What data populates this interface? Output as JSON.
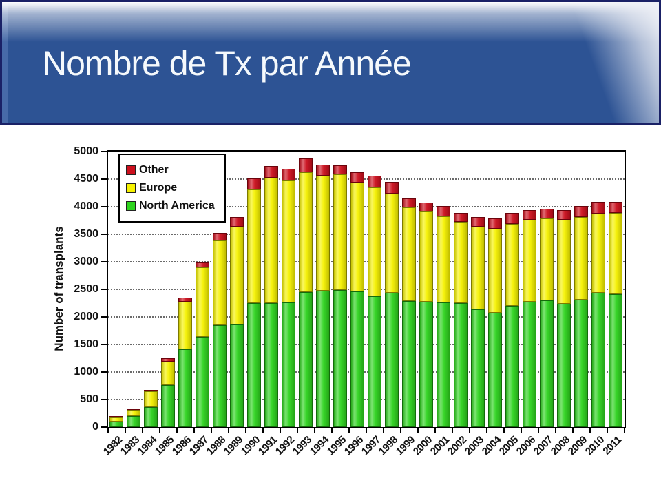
{
  "slide": {
    "title": "Nombre de Tx par Année",
    "banner_color": "#2d5394",
    "banner_border_color": "#1a2166"
  },
  "chart_data": {
    "type": "bar",
    "stacked": true,
    "title": "",
    "xlabel": "",
    "ylabel": "Number of transplants",
    "ylim": [
      0,
      5000
    ],
    "ytick_step": 500,
    "yticks": [
      0,
      500,
      1000,
      1500,
      2000,
      2500,
      3000,
      3500,
      4000,
      4500,
      5000
    ],
    "grid": "horizontal-dotted",
    "legend_position": "top-left-inside",
    "legend_order": [
      "Other",
      "Europe",
      "North America"
    ],
    "categories": [
      1982,
      1983,
      1984,
      1985,
      1986,
      1987,
      1988,
      1989,
      1990,
      1991,
      1992,
      1993,
      1994,
      1995,
      1996,
      1997,
      1998,
      1999,
      2000,
      2001,
      2002,
      2003,
      2004,
      2005,
      2006,
      2007,
      2008,
      2009,
      2010,
      2011
    ],
    "series": [
      {
        "name": "North America",
        "color": "#2ed41e",
        "border": "#146b0c",
        "values": [
          100,
          200,
          360,
          765,
          1410,
          1640,
          1850,
          1860,
          2245,
          2245,
          2265,
          2455,
          2475,
          2485,
          2465,
          2370,
          2440,
          2290,
          2275,
          2265,
          2245,
          2140,
          2080,
          2205,
          2275,
          2300,
          2235,
          2315,
          2435,
          2415
        ]
      },
      {
        "name": "Europe",
        "color": "#f6f200",
        "border": "#7d7a00",
        "values": [
          80,
          110,
          290,
          420,
          865,
          1260,
          1540,
          1780,
          2065,
          2270,
          2210,
          2170,
          2085,
          2095,
          1970,
          1980,
          1805,
          1705,
          1640,
          1565,
          1480,
          1500,
          1520,
          1490,
          1490,
          1490,
          1530,
          1495,
          1435,
          1480
        ]
      },
      {
        "name": "Other",
        "color": "#cc0f1d",
        "border": "#6b040c",
        "values": [
          10,
          10,
          15,
          60,
          75,
          85,
          135,
          175,
          205,
          210,
          210,
          250,
          205,
          165,
          185,
          210,
          210,
          165,
          165,
          185,
          165,
          170,
          190,
          195,
          175,
          180,
          175,
          200,
          210,
          205
        ]
      }
    ]
  }
}
